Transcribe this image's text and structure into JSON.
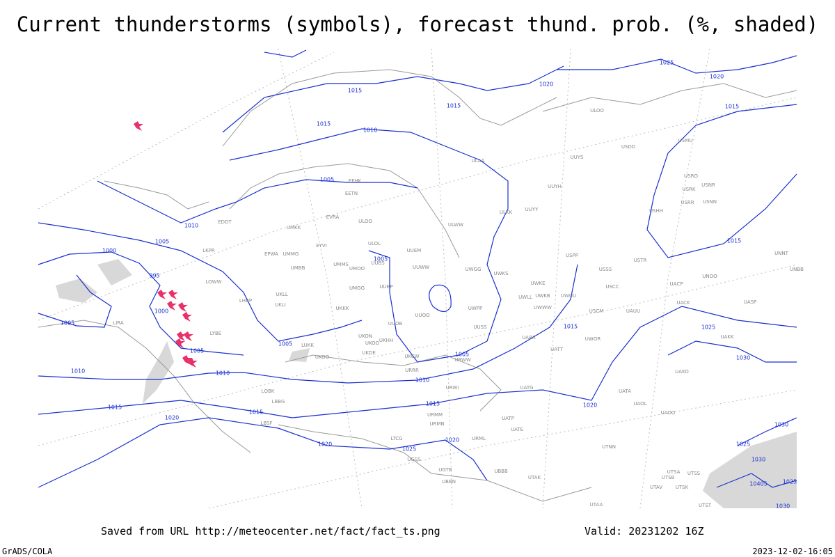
{
  "title": "Current thunderstorms (symbols), forecast thund. prob. (%, shaded)",
  "footer": {
    "source": "Saved from URL http://meteocenter.net/fact/fact_ts.png",
    "valid": "Valid: 20231202 16Z",
    "credit": "GrADS/COLA",
    "timestamp": "2023-12-02-16:05"
  },
  "isobar_labels": [
    1025,
    1020,
    1020,
    1015,
    1015,
    1015,
    1015,
    1010,
    1005,
    1010,
    1005,
    1000,
    995,
    1000,
    1005,
    1005,
    1005,
    1005,
    1005,
    1010,
    1010,
    1010,
    1015,
    1015,
    1025,
    1030,
    1015,
    1015,
    1015,
    1020,
    1020,
    1020,
    1020,
    1025,
    1025,
    1030,
    1030,
    1025,
    10405,
    1030
  ],
  "station_labels": [
    "EFHK",
    "EETN",
    "EVRA",
    "ULOO",
    "ULOL",
    "UMKK",
    "EYVI",
    "UMMG",
    "UMBB",
    "UMMS",
    "UMOO",
    "UUBS",
    "UUEM",
    "UUWW",
    "UWGG",
    "EPWA",
    "LKPR",
    "LOWW",
    "LHBP",
    "UKLL",
    "UKLI",
    "UMGG",
    "UUBP",
    "UKKK",
    "UUOO",
    "UWPP",
    "UWKS",
    "UWKE",
    "UWKB",
    "UWUU",
    "UWWW",
    "UWLL",
    "LYBE",
    "UKHH",
    "UUOB",
    "UKON",
    "UKOO",
    "UKDE",
    "LUKK",
    "UKOO",
    "UKCW",
    "URRR",
    "URWW",
    "UUSS",
    "UATT",
    "UWOR",
    "UARR",
    "USCM",
    "UAUU",
    "USSS",
    "USCC",
    "USTR",
    "USPP",
    "UACP",
    "UNOO",
    "UACK",
    "UASP",
    "UNBB",
    "UNNT",
    "UAKK",
    "UAKO",
    "UUYH",
    "UUYY",
    "ULKK",
    "ULWW",
    "ULAA",
    "UUYS",
    "ULOO",
    "USDD",
    "USMU",
    "USRO",
    "USRK",
    "USNR",
    "USRR",
    "USNN",
    "USHH",
    "UATG",
    "URWI",
    "UATA",
    "UAOL",
    "UAOO",
    "UATP",
    "UATE",
    "URMM",
    "URMN",
    "URML",
    "UTNN",
    "UTSA",
    "UTSB",
    "UTSS",
    "UTAK",
    "UTSK",
    "UTAV",
    "UTST",
    "UTAA",
    "UBBB",
    "UGSS",
    "UGTB",
    "UBBN",
    "LTCG",
    "LBSF",
    "LBBG",
    "LQBK",
    "LIRA",
    "EDDT"
  ]
}
